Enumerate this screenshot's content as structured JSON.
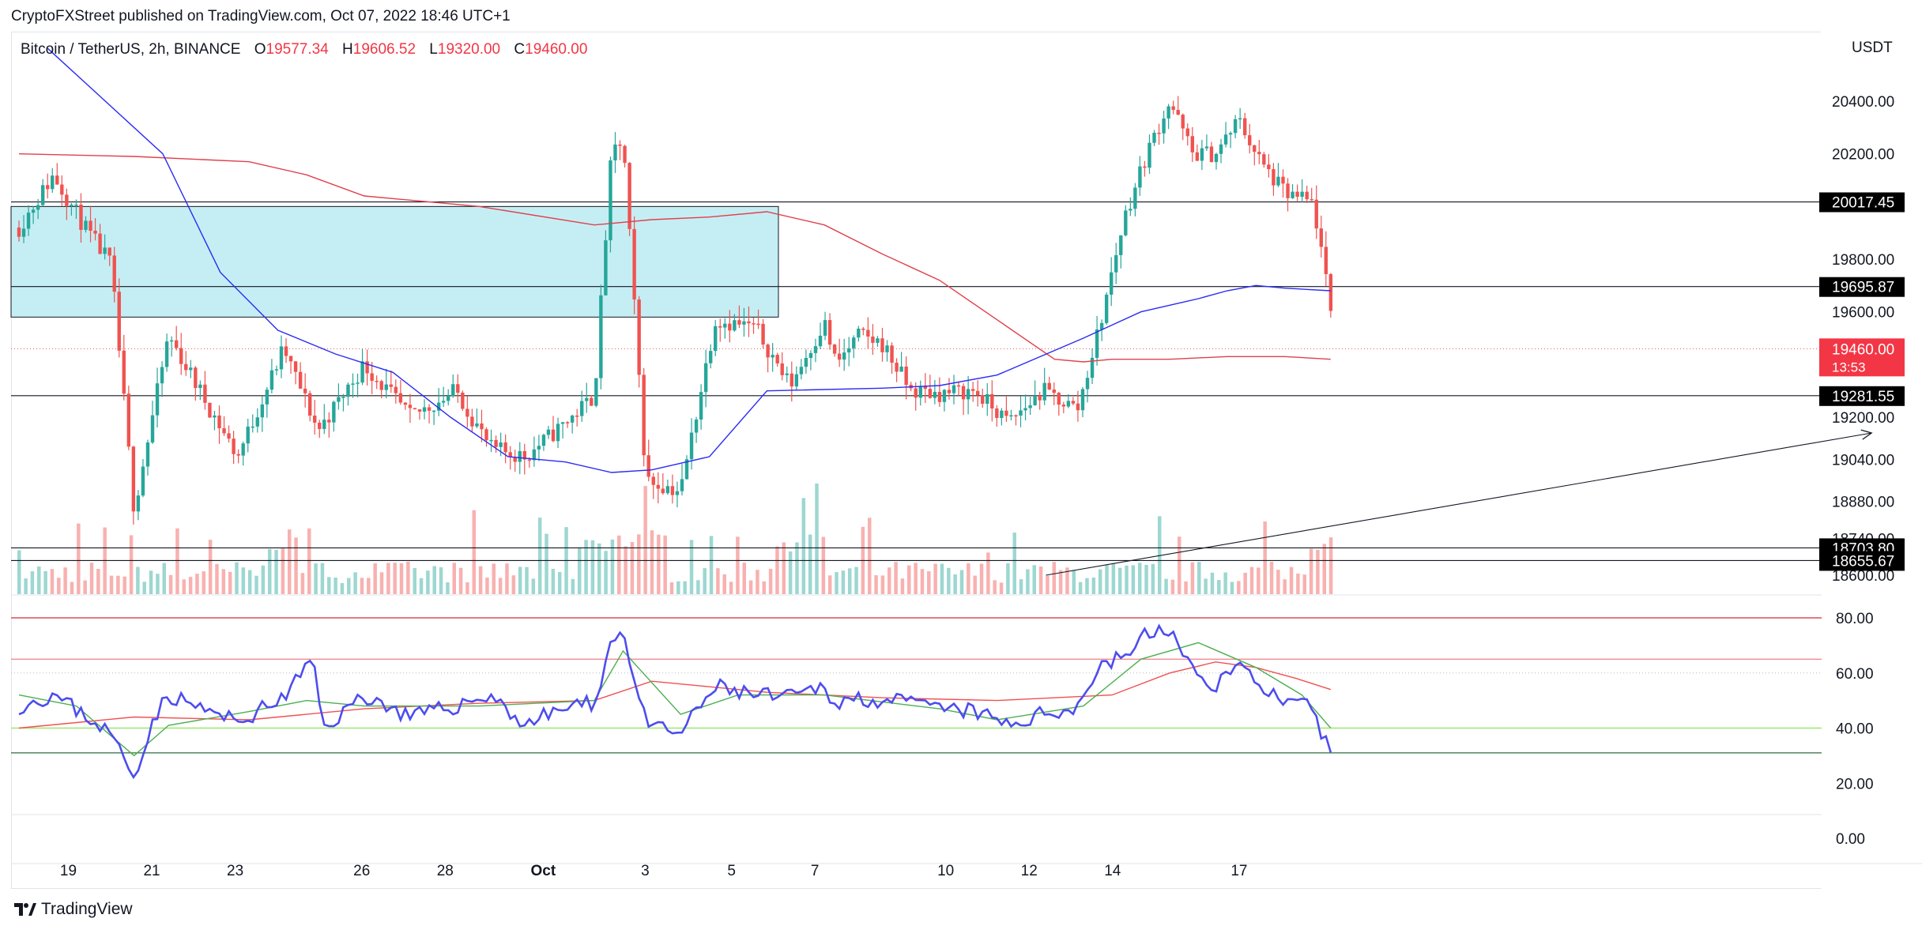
{
  "header": {
    "attribution": "CryptoFXStreet published on TradingView.com, Oct 07, 2022 18:46 UTC+1"
  },
  "legend": {
    "symbol": "Bitcoin / TetherUS, 2h, BINANCE",
    "open_label": "O",
    "open": "19577.34",
    "high_label": "H",
    "high": "19606.52",
    "low_label": "L",
    "low": "19320.00",
    "close_label": "C",
    "close": "19460.00"
  },
  "footer": {
    "brand": "TradingView"
  },
  "colors": {
    "up": "#26a69a",
    "down": "#ef5350",
    "ma_fast": "#2b2bf5",
    "ma_slow": "#e0404c",
    "zone_fill": "#b2e8f0",
    "rsi": "#4d4dee",
    "rsi_ma_green": "#4caf50",
    "rsi_ma_red": "#f05050",
    "price_badge": "#f23645",
    "level_badge": "#000000"
  },
  "chart_data": [
    {
      "type": "candlestick",
      "title": "Bitcoin / TetherUS, 2h, BINANCE",
      "currency": "USDT",
      "x_tick_labels": [
        "19",
        "21",
        "23",
        "26",
        "28",
        "Oct",
        "3",
        "5",
        "7",
        "10",
        "12",
        "14",
        "17"
      ],
      "y_tick_labels": [
        "20400.00",
        "20200.00",
        "19800.00",
        "19600.00",
        "19200.00",
        "19040.00",
        "18880.00",
        "18740.00",
        "18600.00"
      ],
      "ylim": [
        18600,
        20560
      ],
      "current_price": {
        "value": "19460.00",
        "countdown": "13:53"
      },
      "horizontal_levels": [
        "20017.45",
        "19695.87",
        "19281.55",
        "18703.80",
        "18655.67"
      ],
      "zone": {
        "from": "Sep 17",
        "to": "Sep 30",
        "low": 19580,
        "high": 20000
      },
      "trend_line": {
        "from": [
          "Oct 3",
          18600
        ],
        "to": [
          "Oct 16",
          19140
        ]
      },
      "ohlc_nodes": {
        "x_days": [
          0,
          0.6,
          1.2,
          1.6,
          2.0,
          2.6,
          3.3,
          3.8,
          4.6,
          5.2,
          6.0,
          6.8,
          7.6,
          8.2,
          8.8,
          9.4,
          10.0,
          10.3,
          10.5,
          10.9,
          11.5,
          12.1,
          12.8,
          13.4,
          14.0,
          14.2,
          14.6,
          15.0,
          15.5,
          16.0,
          16.6,
          17.2,
          17.8,
          18.4,
          18.8,
          19.2,
          19.6,
          20.0,
          20.4,
          20.8,
          21.2,
          21.6,
          22.0,
          22.5,
          22.9
        ],
        "close": [
          19920,
          20120,
          19900,
          19780,
          18850,
          19510,
          19240,
          19050,
          19460,
          19150,
          19400,
          19200,
          19300,
          19080,
          19050,
          19160,
          19280,
          20200,
          20250,
          18960,
          18920,
          19570,
          19540,
          19320,
          19560,
          19400,
          19510,
          19480,
          19300,
          19290,
          19300,
          19180,
          19300,
          19230,
          19560,
          19950,
          20200,
          20400,
          20200,
          20200,
          20330,
          20160,
          20050,
          20010,
          19460
        ]
      },
      "ma_fast_nodes": {
        "x_days": [
          0.5,
          2.5,
          3.5,
          4.5,
          5.5,
          6.5,
          7.5,
          8.5,
          9.5,
          10.3,
          11.0,
          12.0,
          13.0,
          15.0,
          16.0,
          17.0,
          18.5,
          19.5,
          20.5,
          21.0,
          21.5,
          22.0,
          22.8
        ],
        "values": [
          20600,
          20200,
          19750,
          19530,
          19440,
          19370,
          19200,
          19050,
          19030,
          18990,
          19000,
          19050,
          19300,
          19310,
          19320,
          19360,
          19500,
          19600,
          19650,
          19680,
          19700,
          19690,
          19680
        ]
      },
      "ma_slow_nodes": {
        "x_days": [
          0,
          2,
          4,
          5,
          6,
          8,
          10,
          11,
          12,
          13,
          14,
          15,
          16,
          17,
          18,
          18.5,
          19,
          20,
          21,
          22,
          22.8
        ],
        "values": [
          20200,
          20190,
          20170,
          20120,
          20040,
          20000,
          19930,
          19950,
          19960,
          19980,
          19930,
          19820,
          19720,
          19570,
          19420,
          19410,
          19420,
          19420,
          19430,
          19430,
          19420
        ]
      },
      "volume_bars": 200
    },
    {
      "type": "line",
      "title": "RSI",
      "y_tick_labels": [
        "80.00",
        "60.00",
        "40.00",
        "20.00",
        "0.00"
      ],
      "ylim": [
        0,
        90
      ],
      "bands": {
        "upper": 80,
        "mid_dotted": 60,
        "overbought_red": 65,
        "green": 40,
        "lower": 31
      },
      "rsi_nodes": {
        "x_days": [
          0,
          0.6,
          1.2,
          1.6,
          2.0,
          2.3,
          2.6,
          3.3,
          3.8,
          4.6,
          5.1,
          5.3,
          6.0,
          6.8,
          7.6,
          8.2,
          8.8,
          9.4,
          10.0,
          10.3,
          10.5,
          10.9,
          11.5,
          12.1,
          12.8,
          13.4,
          14.0,
          14.2,
          14.6,
          15.0,
          15.5,
          16.0,
          16.6,
          17.2,
          17.8,
          18.4,
          18.8,
          19.2,
          19.6,
          20.0,
          20.4,
          20.8,
          21.2,
          21.6,
          22.0,
          22.4,
          22.8
        ],
        "values": [
          48,
          52,
          44,
          38,
          22,
          42,
          52,
          46,
          42,
          51,
          65,
          40,
          52,
          44,
          48,
          52,
          41,
          47,
          49,
          72,
          75,
          41,
          38,
          55,
          52,
          51,
          55,
          49,
          51,
          50,
          49,
          47,
          46,
          41,
          45,
          48,
          63,
          66,
          74,
          76,
          60,
          56,
          63,
          56,
          48,
          48,
          31
        ]
      },
      "rsi_ma_red_nodes": {
        "x_days": [
          0,
          2,
          4,
          6,
          8,
          10,
          11,
          12,
          13,
          15,
          17,
          19,
          20,
          20.8,
          21.5,
          22.2,
          22.8
        ],
        "values": [
          40,
          44,
          43,
          47,
          49,
          50,
          57,
          55,
          53,
          51,
          50,
          52,
          60,
          64,
          62,
          58,
          54
        ]
      },
      "rsi_ma_green_nodes": {
        "x_days": [
          0,
          1,
          2,
          2.6,
          4,
          5,
          6,
          8,
          10,
          10.5,
          11.5,
          12.5,
          14,
          16,
          17,
          18.5,
          19.5,
          20.5,
          21.5,
          22.3,
          22.8
        ],
        "values": [
          52,
          48,
          30,
          41,
          46,
          50,
          48,
          48,
          50,
          68,
          45,
          52,
          52,
          47,
          43,
          48,
          65,
          71,
          62,
          52,
          40
        ]
      }
    }
  ]
}
